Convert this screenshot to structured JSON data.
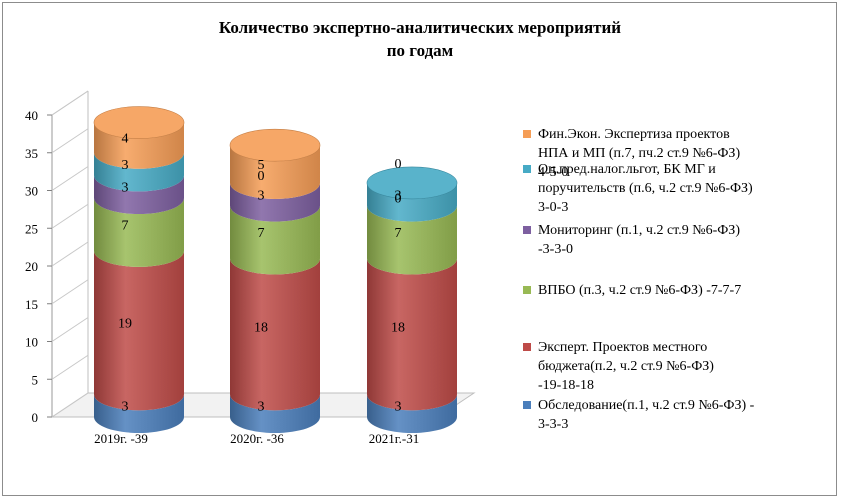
{
  "chart_data": {
    "type": "bar",
    "style": "stacked-3d-cylinder",
    "title": "Количество экспертно-аналитических мероприятий",
    "subtitle": "по годам",
    "categories": [
      "2019г. -39",
      "2020г. -36",
      "2021г.-31"
    ],
    "ylim": [
      0,
      40
    ],
    "yticks": [
      0,
      5,
      10,
      15,
      20,
      25,
      30,
      35,
      40
    ],
    "grid": false,
    "legend_position": "right",
    "series": [
      {
        "name": "Обследование(п.1, ч.2 ст.9 №6-ФЗ)   -3-3-3",
        "legend_lines": [
          "Обследование(п.1, ч.2 ст.9 №6-ФЗ)   -",
          "3-3-3"
        ],
        "values": [
          3,
          3,
          3
        ],
        "color": "#4a7ebb"
      },
      {
        "name": "Эксперт. Проектов местного бюджета(п.2, ч.2 ст.9 №6-ФЗ) -19-18-18",
        "legend_lines": [
          "Эксперт. Проектов местного",
          "бюджета(п.2, ч.2 ст.9 №6-ФЗ)",
          "-19-18-18"
        ],
        "values": [
          19,
          18,
          18
        ],
        "color": "#be4b48"
      },
      {
        "name": "ВПБО (п.3, ч.2 ст.9 №6-ФЗ)      -7-7-7",
        "legend_lines": [
          "ВПБО (п.3, ч.2 ст.9 №6-ФЗ)      -7-7-7"
        ],
        "values": [
          7,
          7,
          7
        ],
        "color": "#98b954"
      },
      {
        "name": "Мониторинг (п.1, ч.2 ст.9 №6-ФЗ) -3-3-0",
        "legend_lines": [
          "Мониторинг (п.1, ч.2 ст.9 №6-ФЗ)",
          "-3-3-0"
        ],
        "values": [
          3,
          3,
          0
        ],
        "color": "#7d5fa0"
      },
      {
        "name": "Оц.пред.налог.льгот, БК МГ и поручительств (п.6, ч.2 ст.9 №6-ФЗ) 3-0-3",
        "legend_lines": [
          "Оц.пред.налог.льгот, БК МГ и",
          "поручительств (п.6, ч.2 ст.9 №6-ФЗ)",
          "3-0-3"
        ],
        "values": [
          3,
          0,
          3
        ],
        "color": "#46aac5"
      },
      {
        "name": "Фин.Экон. Экспертиза проектов НПА и МП (п.7, пч.2 ст.9 №6-ФЗ) 4-5-0",
        "legend_lines": [
          "Фин.Экон. Экспертиза проектов",
          "НПА и МП (п.7, пч.2 ст.9 №6-ФЗ)",
          "4-5-0"
        ],
        "values": [
          4,
          5,
          0
        ],
        "color": "#f59d56"
      }
    ]
  }
}
